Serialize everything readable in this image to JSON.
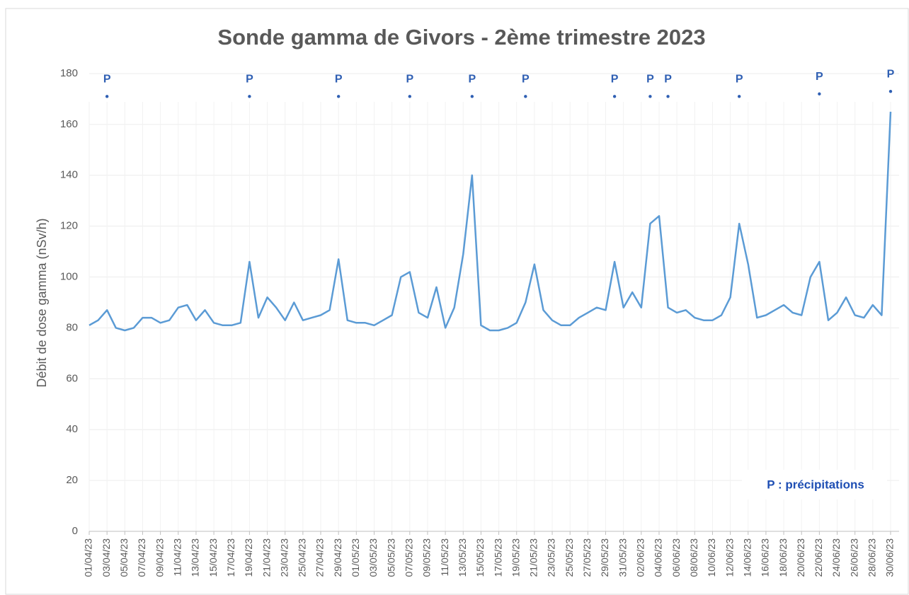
{
  "chart_data": {
    "type": "line",
    "title": "Sonde gamma de Givors - 2ème trimestre 2023",
    "y_label": "Débit de dose gamma (nSv/h)",
    "annotation": "P : précipitations",
    "ylim": [
      0,
      180
    ],
    "yticks": [
      0,
      20,
      40,
      60,
      80,
      100,
      120,
      140,
      160,
      180
    ],
    "grid": true,
    "x": [
      "01/04/23",
      "02/04/23",
      "03/04/23",
      "04/04/23",
      "05/04/23",
      "06/04/23",
      "07/04/23",
      "08/04/23",
      "09/04/23",
      "10/04/23",
      "11/04/23",
      "12/04/23",
      "13/04/23",
      "14/04/23",
      "15/04/23",
      "16/04/23",
      "17/04/23",
      "18/04/23",
      "19/04/23",
      "20/04/23",
      "21/04/23",
      "22/04/23",
      "23/04/23",
      "24/04/23",
      "25/04/23",
      "26/04/23",
      "27/04/23",
      "28/04/23",
      "29/04/23",
      "30/04/23",
      "01/05/23",
      "02/05/23",
      "03/05/23",
      "04/05/23",
      "05/05/23",
      "06/05/23",
      "07/05/23",
      "08/05/23",
      "09/05/23",
      "10/05/23",
      "11/05/23",
      "12/05/23",
      "13/05/23",
      "14/05/23",
      "15/05/23",
      "16/05/23",
      "17/05/23",
      "18/05/23",
      "19/05/23",
      "20/05/23",
      "21/05/23",
      "22/05/23",
      "23/05/23",
      "24/05/23",
      "25/05/23",
      "26/05/23",
      "27/05/23",
      "28/05/23",
      "29/05/23",
      "30/05/23",
      "31/05/23",
      "01/06/23",
      "02/06/23",
      "03/06/23",
      "04/06/23",
      "05/06/23",
      "06/06/23",
      "07/06/23",
      "08/06/23",
      "09/06/23",
      "10/06/23",
      "11/06/23",
      "12/06/23",
      "13/06/23",
      "14/06/23",
      "15/06/23",
      "16/06/23",
      "17/06/23",
      "18/06/23",
      "19/06/23",
      "20/06/23",
      "21/06/23",
      "22/06/23",
      "23/06/23",
      "24/06/23",
      "25/06/23",
      "26/06/23",
      "27/06/23",
      "28/06/23",
      "29/06/23",
      "30/06/23"
    ],
    "xticks": [
      "01/04/23",
      "03/04/23",
      "05/04/23",
      "07/04/23",
      "09/04/23",
      "11/04/23",
      "13/04/23",
      "15/04/23",
      "17/04/23",
      "19/04/23",
      "21/04/23",
      "23/04/23",
      "25/04/23",
      "27/04/23",
      "29/04/23",
      "01/05/23",
      "03/05/23",
      "05/05/23",
      "07/05/23",
      "09/05/23",
      "11/05/23",
      "13/05/23",
      "15/05/23",
      "17/05/23",
      "19/05/23",
      "21/05/23",
      "23/05/23",
      "25/05/23",
      "27/05/23",
      "29/05/23",
      "31/05/23",
      "02/06/23",
      "04/06/23",
      "06/06/23",
      "08/06/23",
      "10/06/23",
      "12/06/23",
      "14/06/23",
      "16/06/23",
      "18/06/23",
      "20/06/23",
      "22/06/23",
      "24/06/23",
      "26/06/23",
      "28/06/23",
      "30/06/23"
    ],
    "series": [
      {
        "color": "#5b9bd5",
        "values": [
          81,
          83,
          87,
          80,
          79,
          80,
          84,
          84,
          82,
          83,
          88,
          89,
          83,
          87,
          82,
          81,
          81,
          82,
          106,
          84,
          92,
          88,
          83,
          90,
          83,
          84,
          85,
          87,
          107,
          83,
          82,
          82,
          81,
          83,
          85,
          100,
          102,
          86,
          84,
          96,
          80,
          88,
          109,
          140,
          81,
          79,
          79,
          80,
          82,
          90,
          105,
          87,
          83,
          81,
          81,
          84,
          86,
          88,
          87,
          106,
          88,
          94,
          88,
          121,
          124,
          88,
          86,
          87,
          84,
          83,
          83,
          85,
          92,
          121,
          105,
          84,
          85,
          87,
          89,
          86,
          85,
          100,
          106,
          83,
          86,
          92,
          85,
          84,
          89,
          85,
          165
        ]
      },
      {
        "name": "P",
        "color": "#2f5fb3",
        "values": [
          null,
          null,
          171,
          null,
          null,
          null,
          null,
          null,
          null,
          null,
          null,
          null,
          null,
          null,
          null,
          null,
          null,
          null,
          171,
          null,
          null,
          null,
          null,
          null,
          null,
          null,
          null,
          null,
          171,
          null,
          null,
          null,
          null,
          null,
          null,
          null,
          171,
          null,
          null,
          null,
          null,
          null,
          null,
          171,
          null,
          null,
          null,
          null,
          null,
          171,
          null,
          null,
          null,
          null,
          null,
          null,
          null,
          null,
          null,
          171,
          null,
          null,
          null,
          171,
          null,
          171,
          null,
          null,
          null,
          null,
          null,
          null,
          null,
          171,
          null,
          null,
          null,
          null,
          null,
          null,
          null,
          null,
          172,
          null,
          null,
          null,
          null,
          null,
          null,
          null,
          173
        ]
      }
    ]
  }
}
